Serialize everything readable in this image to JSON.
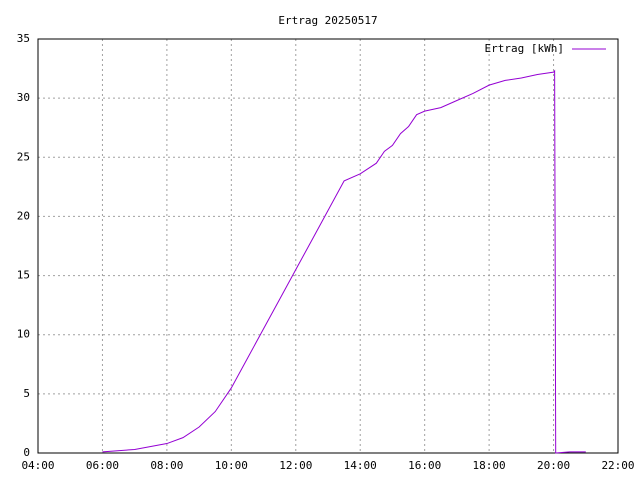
{
  "chart_data": {
    "type": "line",
    "title": "Ertrag 20250517",
    "x": [
      "06:00",
      "07:00",
      "08:00",
      "08:30",
      "09:00",
      "09:30",
      "10:00",
      "10:30",
      "11:00",
      "11:30",
      "12:00",
      "12:30",
      "13:00",
      "13:30",
      "14:00",
      "14:30",
      "14:45",
      "15:00",
      "15:15",
      "15:30",
      "15:45",
      "16:00",
      "16:30",
      "17:00",
      "17:30",
      "18:00",
      "18:30",
      "19:00",
      "19:30",
      "20:00",
      "20:02",
      "20:03",
      "20:04",
      "20:30",
      "21:00"
    ],
    "series": [
      {
        "name": "Ertrag [kWh]",
        "color": "#9400d3",
        "values": [
          0.1,
          0.3,
          0.8,
          1.3,
          2.2,
          3.5,
          5.5,
          8,
          10.5,
          13,
          15.5,
          18,
          20.5,
          23,
          23.6,
          24.5,
          25.5,
          26,
          27,
          27.6,
          28.6,
          28.9,
          29.2,
          29.8,
          30.4,
          31.1,
          31.5,
          31.7,
          32,
          32.2,
          32.3,
          16,
          0,
          0.1,
          0.1
        ]
      }
    ],
    "xlim": [
      "04:00",
      "22:00"
    ],
    "xticks": [
      "04:00",
      "06:00",
      "08:00",
      "10:00",
      "12:00",
      "14:00",
      "16:00",
      "18:00",
      "20:00",
      "22:00"
    ],
    "ylim": [
      0,
      35
    ],
    "yticks": [
      0,
      5,
      10,
      15,
      20,
      25,
      30,
      35
    ],
    "grid": true,
    "legend": "top-right"
  }
}
